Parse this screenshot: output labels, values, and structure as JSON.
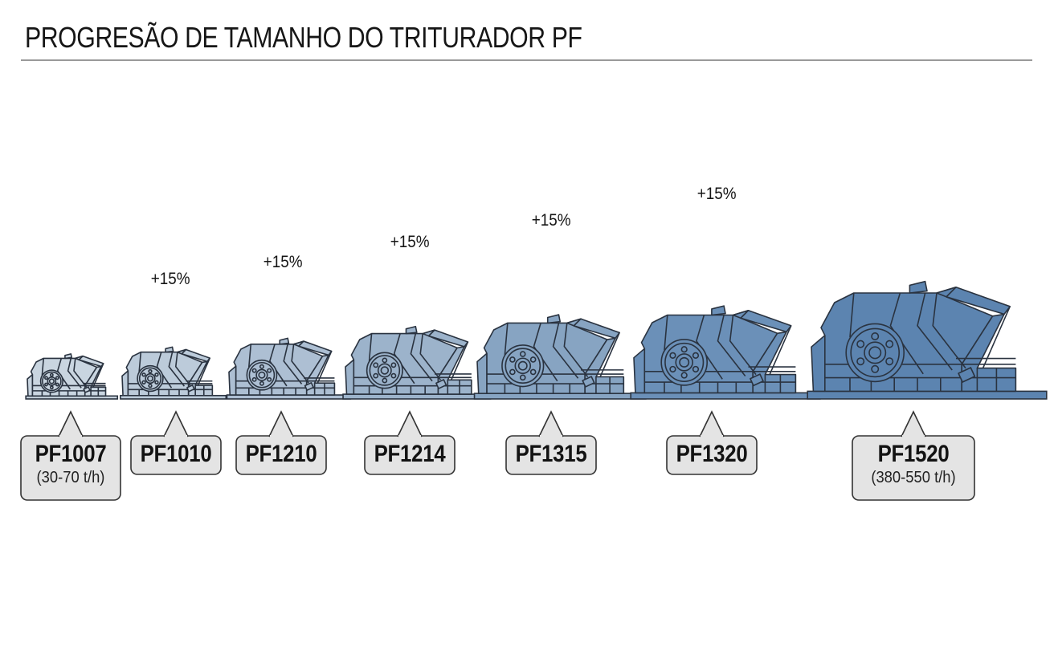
{
  "title": "PROGRESÃO DE TAMANHO DO TRITURADOR PF",
  "increment_label": "+15%",
  "crushers": [
    {
      "model": "PF1007",
      "capacity": "(30-70 t/h)",
      "fill": "#c9d5e0"
    },
    {
      "model": "PF1010",
      "capacity": "",
      "fill": "#bccbda"
    },
    {
      "model": "PF1210",
      "capacity": "",
      "fill": "#adbfd3"
    },
    {
      "model": "PF1214",
      "capacity": "",
      "fill": "#9cb3cb"
    },
    {
      "model": "PF1315",
      "capacity": "",
      "fill": "#87a4c2"
    },
    {
      "model": "PF1320",
      "capacity": "",
      "fill": "#6b90b8"
    },
    {
      "model": "PF1520",
      "capacity": "(380-550 t/h)",
      "fill": "#5c84b0"
    }
  ],
  "colors": {
    "outline": "#2a3340",
    "callout_fill": "#e4e4e4",
    "rule": "#9a9a9a"
  }
}
